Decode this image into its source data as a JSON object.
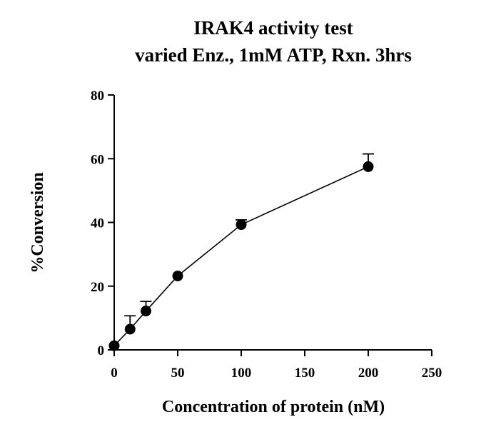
{
  "chart_data": {
    "type": "scatter",
    "title": "IRAK4 activity test",
    "subtitle": "varied Enz., 1mM ATP, Rxn. 3hrs",
    "xlabel": "Concentration of protein (nM)",
    "ylabel": "%Conversion",
    "xlim": [
      0,
      250
    ],
    "ylim": [
      0,
      80
    ],
    "x_ticks": [
      0,
      50,
      100,
      150,
      200,
      250
    ],
    "y_ticks": [
      0,
      20,
      40,
      60,
      80
    ],
    "grid": false,
    "series": [
      {
        "x": [
          0,
          12.5,
          25,
          50,
          100,
          200
        ],
        "y": [
          1.3,
          6.5,
          12.2,
          23.2,
          39.3,
          57.5
        ],
        "error": [
          0,
          4.2,
          3.0,
          0.3,
          1.5,
          4.0
        ],
        "markers": "filled-circle",
        "connected": true
      }
    ]
  }
}
